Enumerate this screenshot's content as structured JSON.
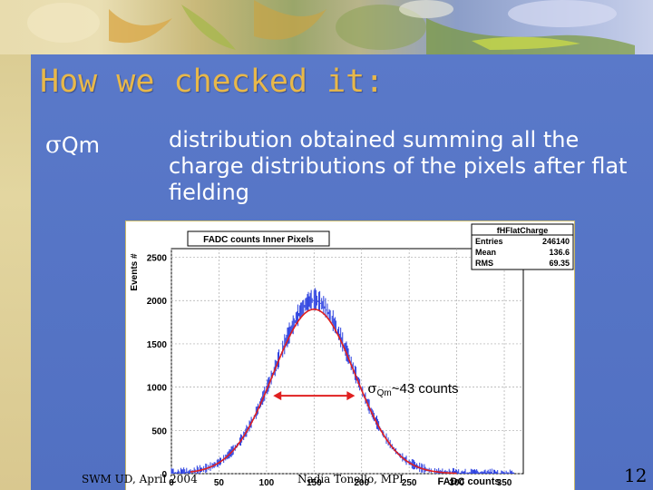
{
  "slide": {
    "title": "How we checked it:",
    "sigma_symbol": "σ",
    "sigma_sub": "Qm",
    "description": "distribution obtained summing all the charge distributions of the pixels after flat fielding",
    "footer_left": "SWM UD,  April 2004",
    "footer_center": "Nadia Tonello, MPI",
    "page_number": "12"
  },
  "colors": {
    "panel": "#5672c4",
    "title": "#e8b84a",
    "histogram": "#2a3fe0",
    "fit": "#e02020",
    "arrow": "#e02020"
  },
  "chart_data": {
    "type": "histogram",
    "title": "FADC counts Inner Pixels",
    "xlabel": "FADC counts",
    "ylabel": "Events #",
    "xlim": [
      0,
      370
    ],
    "ylim": [
      0,
      2600
    ],
    "x_ticks": [
      0,
      50,
      100,
      150,
      200,
      250,
      300,
      350
    ],
    "y_ticks": [
      0,
      500,
      1000,
      1500,
      2000,
      2500
    ],
    "grid": true,
    "stats_box": {
      "name": "fHFlatCharge",
      "rows": [
        {
          "label": "Entries",
          "value": "246140"
        },
        {
          "label": "Mean",
          "value": "136.6"
        },
        {
          "label": "RMS",
          "value": "69.35"
        }
      ]
    },
    "fit": {
      "mean": 150,
      "sigma": 43,
      "amplitude": 1900
    },
    "peak_value": 2000,
    "annotation": {
      "sigma_symbol": "σ",
      "sub": "Qm",
      "text": "~43 counts",
      "x_from": 107,
      "x_to": 193,
      "y": 900
    }
  }
}
